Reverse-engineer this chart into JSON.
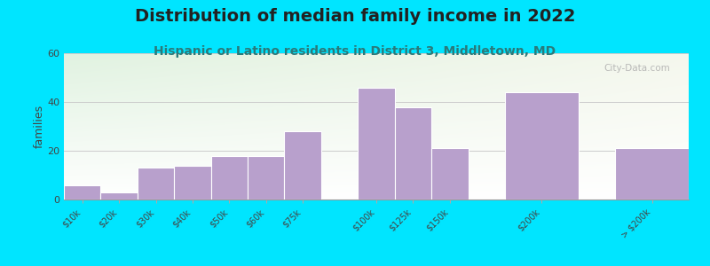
{
  "title": "Distribution of median family income in 2022",
  "subtitle": "Hispanic or Latino residents in District 3, Middletown, MD",
  "categories": [
    "$10k",
    "$20k",
    "$30k",
    "$40k",
    "$50k",
    "$60k",
    "$75k",
    "$100k",
    "$125k",
    "$150k",
    "$200k",
    "> $200k"
  ],
  "values": [
    6,
    3,
    13,
    14,
    18,
    18,
    28,
    46,
    38,
    21,
    44,
    21
  ],
  "bar_widths": [
    1,
    1,
    1,
    1,
    1,
    1,
    1,
    1,
    1,
    1,
    2,
    2
  ],
  "bar_lefts": [
    0,
    1,
    2,
    3,
    4,
    5,
    6,
    8,
    9,
    10,
    12,
    15
  ],
  "bar_color": "#b8a0cc",
  "bar_edge_color": "#ffffff",
  "ylabel": "families",
  "ylim": [
    0,
    60
  ],
  "yticks": [
    0,
    20,
    40,
    60
  ],
  "background_outer": "#00e5ff",
  "title_fontsize": 14,
  "subtitle_fontsize": 10,
  "subtitle_color": "#2a7a7a",
  "watermark_text": "City-Data.com",
  "watermark_color": "#aaaaaa",
  "grad_left": "#ddeedd",
  "grad_right": "#f5f5f0"
}
